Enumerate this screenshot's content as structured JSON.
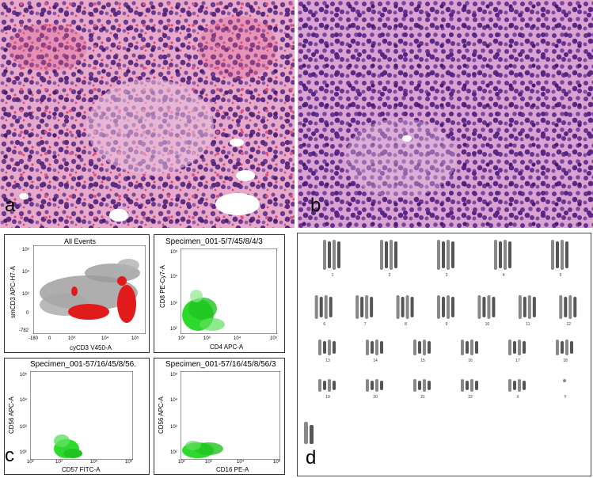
{
  "panels": {
    "a": {
      "letter": "a"
    },
    "b": {
      "letter": "b"
    },
    "c": {
      "letter": "c"
    },
    "d": {
      "letter": "d"
    }
  },
  "flow": {
    "plot1": {
      "title": "All Events",
      "xlabel": "cyCD3 V450-A",
      "ylabel": "smCD3 APC-H7-A",
      "xticks": [
        "-180",
        "0",
        "10³",
        "10⁴",
        "10⁵"
      ],
      "yticks": [
        "10⁵",
        "10⁴",
        "10³",
        "0",
        "-782"
      ]
    },
    "plot2": {
      "title": "Specimen_001-5/7/45/8/4/3",
      "xlabel": "CD4 APC-A",
      "ylabel": "CD8 PE-Cy7-A",
      "xticks": [
        "10²",
        "10³",
        "10⁴",
        "10⁵"
      ],
      "yticks": [
        "10⁵",
        "10⁴",
        "10³",
        "10²"
      ]
    },
    "plot3": {
      "title": "Specimen_001-57/16/45/8/56.",
      "xlabel": "CD57 FITC-A",
      "ylabel": "CD56 APC-A",
      "xticks": [
        "10²",
        "10³",
        "10⁴",
        "10⁵"
      ],
      "yticks": [
        "10⁵",
        "10⁴",
        "10³",
        "10²"
      ]
    },
    "plot4": {
      "title": "Specimen_001-57/16/45/8/56/3",
      "xlabel": "CD16 PE-A",
      "ylabel": "CD56 APC-A",
      "xticks": [
        "10²",
        "10³",
        "10⁴",
        "10⁵"
      ],
      "yticks": [
        "10⁵",
        "10⁴",
        "10³",
        "10²"
      ]
    }
  },
  "karyotype": {
    "labels": [
      "1",
      "2",
      "3",
      "4",
      "5",
      "6",
      "7",
      "8",
      "9",
      "10",
      "11",
      "12",
      "13",
      "14",
      "15",
      "16",
      "17",
      "18",
      "19",
      "20",
      "21",
      "22",
      "X",
      "Y"
    ]
  }
}
